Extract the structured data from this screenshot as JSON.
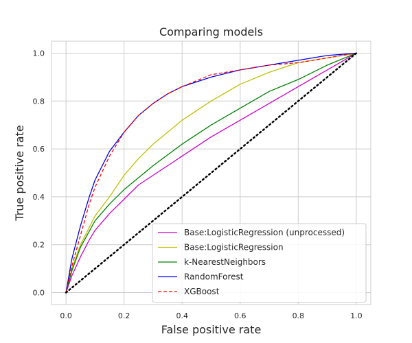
{
  "chart_data": {
    "type": "line",
    "title": "Comparing models",
    "xlabel": "False positive rate",
    "ylabel": "True positive rate",
    "xlim": [
      -0.05,
      1.05
    ],
    "ylim": [
      -0.05,
      1.05
    ],
    "xticks": [
      0.0,
      0.2,
      0.4,
      0.6,
      0.8,
      1.0
    ],
    "yticks": [
      0.0,
      0.2,
      0.4,
      0.6,
      0.8,
      1.0
    ],
    "xtick_labels": [
      "0.0",
      "0.2",
      "0.4",
      "0.6",
      "0.8",
      "1.0"
    ],
    "ytick_labels": [
      "0.0",
      "0.2",
      "0.4",
      "0.6",
      "0.8",
      "1.0"
    ],
    "grid": true,
    "legend_position": "lower-right",
    "series": [
      {
        "name": "Base:LogisticRegression (unprocessed)",
        "color": "#cc00cc",
        "dash": "solid",
        "x": [
          0.0,
          0.02,
          0.05,
          0.08,
          0.1,
          0.15,
          0.2,
          0.25,
          0.3,
          0.4,
          0.5,
          0.6,
          0.7,
          0.8,
          0.9,
          1.0
        ],
        "y": [
          0.0,
          0.07,
          0.15,
          0.22,
          0.26,
          0.33,
          0.39,
          0.45,
          0.49,
          0.57,
          0.65,
          0.72,
          0.79,
          0.86,
          0.93,
          1.0
        ]
      },
      {
        "name": "Base:LogisticRegression",
        "color": "#bfbf00",
        "dash": "solid",
        "x": [
          0.0,
          0.02,
          0.05,
          0.1,
          0.15,
          0.2,
          0.25,
          0.3,
          0.35,
          0.4,
          0.5,
          0.6,
          0.7,
          0.8,
          0.9,
          1.0
        ],
        "y": [
          0.0,
          0.1,
          0.2,
          0.32,
          0.4,
          0.49,
          0.56,
          0.62,
          0.67,
          0.72,
          0.8,
          0.87,
          0.92,
          0.96,
          0.98,
          1.0
        ]
      },
      {
        "name": "k-NearestNeighbors",
        "color": "#008000",
        "dash": "solid",
        "x": [
          0.0,
          0.02,
          0.05,
          0.1,
          0.15,
          0.2,
          0.25,
          0.3,
          0.4,
          0.5,
          0.6,
          0.7,
          0.8,
          0.9,
          1.0
        ],
        "y": [
          0.0,
          0.09,
          0.19,
          0.3,
          0.37,
          0.43,
          0.48,
          0.53,
          0.62,
          0.7,
          0.77,
          0.84,
          0.89,
          0.95,
          1.0
        ]
      },
      {
        "name": "RandomForest",
        "color": "#0000ee",
        "dash": "solid",
        "x": [
          0.0,
          0.02,
          0.05,
          0.08,
          0.1,
          0.15,
          0.2,
          0.25,
          0.3,
          0.35,
          0.4,
          0.5,
          0.6,
          0.7,
          0.8,
          0.9,
          1.0
        ],
        "y": [
          0.0,
          0.14,
          0.28,
          0.4,
          0.47,
          0.59,
          0.67,
          0.74,
          0.79,
          0.83,
          0.86,
          0.9,
          0.93,
          0.95,
          0.97,
          0.99,
          1.0
        ]
      },
      {
        "name": "XGBoost",
        "color": "#ff0000",
        "dash": "dashed",
        "x": [
          0.0,
          0.02,
          0.05,
          0.08,
          0.1,
          0.15,
          0.2,
          0.25,
          0.3,
          0.35,
          0.4,
          0.5,
          0.6,
          0.7,
          0.8,
          0.9,
          1.0
        ],
        "y": [
          0.0,
          0.11,
          0.24,
          0.37,
          0.44,
          0.57,
          0.67,
          0.74,
          0.79,
          0.83,
          0.86,
          0.91,
          0.93,
          0.95,
          0.96,
          0.98,
          1.0
        ]
      },
      {
        "name": "",
        "color": "#000000",
        "dash": "dotted",
        "x": [
          0.0,
          1.0
        ],
        "y": [
          0.0,
          1.0
        ]
      }
    ]
  }
}
